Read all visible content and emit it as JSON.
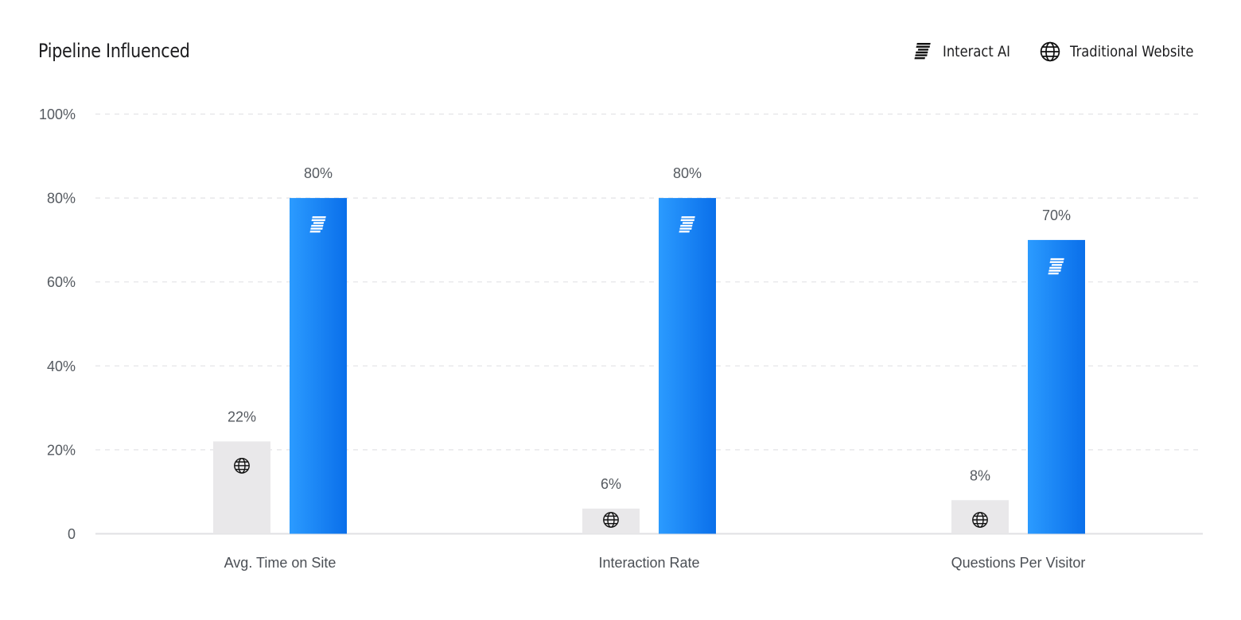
{
  "chart_data": {
    "type": "bar",
    "title": "Pipeline Influenced",
    "categories": [
      "Avg. Time on Site",
      "Interaction Rate",
      "Questions Per Visitor"
    ],
    "series": [
      {
        "name": "Traditional Website",
        "values": [
          22,
          6,
          8
        ],
        "labels": [
          "22%",
          "6%",
          "8%"
        ],
        "color": "#e9e8ea",
        "icon": "globe-icon"
      },
      {
        "name": "Interact AI",
        "values": [
          80,
          80,
          70
        ],
        "labels": [
          "80%",
          "80%",
          "70%"
        ],
        "color": "#1a86f5",
        "icon": "interact-logo-icon"
      }
    ],
    "ylim": [
      0,
      100
    ],
    "yticks": [
      0,
      20,
      40,
      60,
      80,
      100
    ],
    "ytick_labels": [
      "0",
      "20%",
      "40%",
      "60%",
      "80%",
      "100%"
    ],
    "grid": true,
    "legend_position": "top-right",
    "legend": [
      "Interact AI",
      "Traditional Website"
    ]
  },
  "colors": {
    "interact_gradient_start": "#2b9bff",
    "interact_gradient_end": "#0a6fea",
    "traditional": "#e9e8ea",
    "grid": "#e3e3e6",
    "axis": "#e0e0e3"
  }
}
